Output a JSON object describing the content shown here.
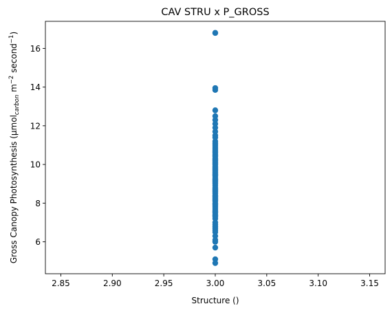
{
  "chart_data": {
    "type": "scatter",
    "title": "CAV STRU x P_GROSS",
    "xlabel": "Structure ()",
    "ylabel": {
      "prefix": "Gross Canopy Photosynthesis (μmol",
      "subscript": "carbon",
      "mid": " m",
      "sup1": "−2",
      "mid2": " second",
      "sup2": "−1",
      "suffix": ")"
    },
    "xlim": [
      2.835,
      3.165
    ],
    "ylim": [
      4.35,
      17.4
    ],
    "xticks": [
      2.85,
      2.9,
      2.95,
      3.0,
      3.05,
      3.1,
      3.15
    ],
    "xtick_labels": [
      "2.85",
      "2.90",
      "2.95",
      "3.00",
      "3.05",
      "3.10",
      "3.15"
    ],
    "yticks": [
      6,
      8,
      10,
      12,
      14,
      16
    ],
    "ytick_labels": [
      "6",
      "8",
      "10",
      "12",
      "14",
      "16"
    ],
    "grid": false,
    "marker_color": "#1f77b4",
    "series": [
      {
        "x": [
          3.0,
          3.0,
          3.0,
          3.0,
          3.0,
          3.0,
          3.0,
          3.0,
          3.0,
          3.0,
          3.0,
          3.0,
          3.0,
          3.0,
          3.0,
          3.0,
          3.0,
          3.0,
          3.0,
          3.0,
          3.0,
          3.0,
          3.0,
          3.0,
          3.0,
          3.0,
          3.0,
          3.0,
          3.0,
          3.0,
          3.0,
          3.0,
          3.0,
          3.0,
          3.0,
          3.0,
          3.0,
          3.0,
          3.0,
          3.0,
          3.0,
          3.0,
          3.0,
          3.0,
          3.0,
          3.0,
          3.0,
          3.0,
          3.0,
          3.0,
          3.0,
          3.0,
          3.0,
          3.0,
          3.0,
          3.0,
          3.0,
          3.0,
          3.0,
          3.0,
          3.0,
          3.0,
          3.0,
          3.0,
          3.0,
          3.0,
          3.0,
          3.0,
          3.0,
          3.0,
          3.0,
          3.0,
          3.0,
          3.0,
          3.0,
          3.0,
          3.0,
          3.0,
          3.0,
          3.0,
          3.0,
          3.0,
          3.0,
          3.0,
          3.0,
          3.0,
          3.0
        ],
        "y": [
          4.9,
          5.1,
          5.7,
          6.0,
          6.1,
          6.3,
          6.5,
          6.7,
          6.8,
          6.9,
          7.0,
          7.2,
          7.3,
          7.4,
          7.5,
          7.6,
          7.7,
          7.8,
          7.9,
          8.0,
          8.1,
          8.2,
          8.3,
          8.4,
          8.5,
          8.6,
          8.7,
          8.8,
          8.9,
          9.0,
          9.1,
          9.2,
          9.3,
          9.4,
          9.5,
          9.6,
          9.7,
          9.8,
          9.9,
          10.0,
          10.1,
          10.2,
          10.3,
          10.4,
          10.5,
          10.6,
          10.7,
          10.8,
          10.9,
          11.0,
          11.2,
          11.4,
          11.5,
          11.7,
          11.9,
          12.1,
          12.3,
          12.5,
          12.8,
          13.85,
          13.95,
          16.8,
          16.8,
          8.55,
          8.65,
          9.05,
          9.15,
          9.45,
          9.55,
          9.75,
          9.85,
          10.05,
          10.15,
          8.15,
          8.25,
          7.95,
          7.55,
          10.45,
          10.65,
          8.75,
          8.35,
          9.25,
          9.65,
          10.25,
          7.35,
          6.6,
          11.1
        ]
      }
    ]
  }
}
